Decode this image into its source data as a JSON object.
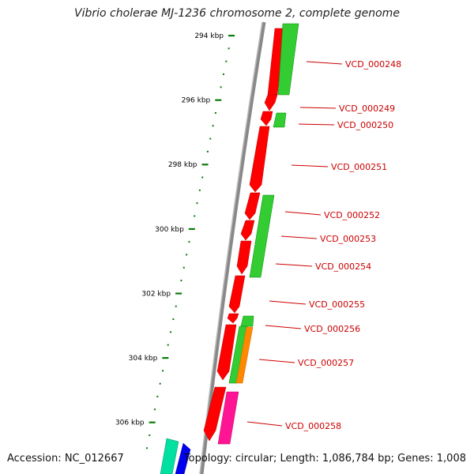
{
  "title": "Vibrio cholerae MJ-1236 chromosome 2, complete genome",
  "accession": "Accession: NC_012667",
  "summary": "Topology: circular; Length: 1,086,784 bp; Genes: 1,008",
  "colors": {
    "backbone": "#888888",
    "tick": "#0a7a0a",
    "forward_gene": "#ff0000",
    "reverse_gene": "#33cc33",
    "label": "#cc0000",
    "orange_gene": "#ff8800",
    "magenta_gene": "#ff1493",
    "teal_gene": "#00e0a0",
    "blue_gene": "#0000ee"
  },
  "scale": {
    "unit": "kbp",
    "ticks": [
      {
        "pos": 294,
        "label": "294 kbp"
      },
      {
        "pos": 296,
        "label": "296 kbp"
      },
      {
        "pos": 298,
        "label": "298 kbp"
      },
      {
        "pos": 300,
        "label": "300 kbp"
      },
      {
        "pos": 302,
        "label": "302 kbp"
      },
      {
        "pos": 304,
        "label": "304 kbp"
      },
      {
        "pos": 306,
        "label": "306 kbp"
      }
    ]
  },
  "genes": [
    {
      "id": "VCD_000248"
    },
    {
      "id": "VCD_000249"
    },
    {
      "id": "VCD_000250"
    },
    {
      "id": "VCD_000251"
    },
    {
      "id": "VCD_000252"
    },
    {
      "id": "VCD_000253"
    },
    {
      "id": "VCD_000254"
    },
    {
      "id": "VCD_000255"
    },
    {
      "id": "VCD_000256"
    },
    {
      "id": "VCD_000257"
    },
    {
      "id": "VCD_000258"
    }
  ]
}
